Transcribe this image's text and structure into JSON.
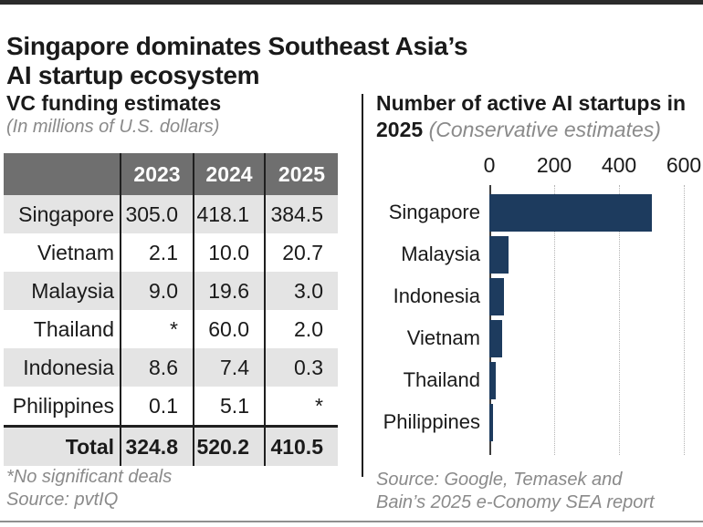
{
  "page": {
    "title": "Singapore dominates Southeast Asia’s\nAI startup ecosystem"
  },
  "left_panel": {
    "heading": "VC funding estimates",
    "subheading": "(In millions of U.S. dollars)",
    "table": {
      "columns": [
        "",
        "2023",
        "2024",
        "2025"
      ],
      "rows": [
        {
          "label": "Singapore",
          "values": [
            "305.0",
            "418.1",
            "384.5"
          ]
        },
        {
          "label": "Vietnam",
          "values": [
            "2.1",
            "10.0",
            "20.7"
          ]
        },
        {
          "label": "Malaysia",
          "values": [
            "9.0",
            "19.6",
            "3.0"
          ]
        },
        {
          "label": "Thailand",
          "values": [
            "*",
            "60.0",
            "2.0"
          ]
        },
        {
          "label": "Indonesia",
          "values": [
            "8.6",
            "7.4",
            "0.3"
          ]
        },
        {
          "label": "Philippines",
          "values": [
            "0.1",
            "5.1",
            "*"
          ]
        }
      ],
      "total_row": {
        "label": "Total",
        "values": [
          "324.8",
          "520.2",
          "410.5"
        ]
      }
    },
    "footnote": "*No significant deals",
    "source": "Source: pvtIQ"
  },
  "right_panel": {
    "heading_bold": "Number of active AI startups in 2025",
    "heading_note": "(Conservative estimates)",
    "source": "Source: Google, Temasek and\nBain’s 2025 e-Conomy SEA report"
  },
  "chart_data": [
    {
      "type": "table",
      "title": "VC funding estimates (In millions of U.S. dollars)",
      "categories": [
        "Singapore",
        "Vietnam",
        "Malaysia",
        "Thailand",
        "Indonesia",
        "Philippines",
        "Total"
      ],
      "series": [
        {
          "name": "2023",
          "values": [
            305.0,
            2.1,
            9.0,
            null,
            8.6,
            0.1,
            324.8
          ]
        },
        {
          "name": "2024",
          "values": [
            418.1,
            10.0,
            19.6,
            60.0,
            7.4,
            5.1,
            520.2
          ]
        },
        {
          "name": "2025",
          "values": [
            384.5,
            20.7,
            3.0,
            2.0,
            0.3,
            null,
            410.5
          ]
        }
      ],
      "note": "* No significant deals (shown as null)"
    },
    {
      "type": "bar",
      "orientation": "horizontal",
      "title": "Number of active AI startups in 2025 (Conservative estimates)",
      "categories": [
        "Singapore",
        "Malaysia",
        "Indonesia",
        "Vietnam",
        "Thailand",
        "Philippines"
      ],
      "values": [
        500,
        60,
        45,
        40,
        20,
        10
      ],
      "xlim": [
        0,
        600
      ],
      "x_ticks": [
        0,
        200,
        400,
        600
      ],
      "grid": "dotted-vertical",
      "legend": "none",
      "bar_color": "#1d3b5e"
    }
  ],
  "colors": {
    "bar": "#1d3b5e",
    "table_header_bg": "#6f6f6f",
    "row_stripe": "#e4e4e4",
    "muted_text": "#8a8a8a",
    "rule_dark": "#1f1f1f"
  }
}
